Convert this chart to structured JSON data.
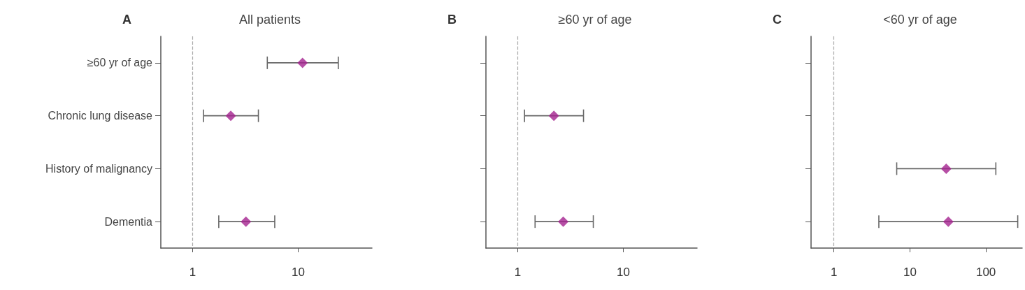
{
  "chart_data": [
    {
      "type": "scatter",
      "title": "All patients",
      "annotations": [
        "A"
      ],
      "orientation": "horizontal",
      "categories": [
        "≥60 yr of age",
        "Chronic lung disease",
        "History of malignancy",
        "Dementia"
      ],
      "series": [
        {
          "color": "#a4228f",
          "values": [
            11,
            2.3,
            null,
            3.2
          ],
          "errors": [
            [
              5.1,
              24
            ],
            [
              1.27,
              4.2
            ],
            null,
            [
              1.77,
              6.0
            ]
          ]
        }
      ],
      "log": "x",
      "xlim": [
        0.5,
        50
      ],
      "xticks": [
        1,
        10
      ],
      "marker": "diamond",
      "grid": false,
      "ref_lines": [
        {
          "axis": "x",
          "value": 1,
          "color": "#aaaaaa",
          "line_style": "dashed"
        }
      ]
    },
    {
      "type": "scatter",
      "title": "≥60 yr of age",
      "annotations": [
        "B"
      ],
      "orientation": "horizontal",
      "categories": [
        null,
        null,
        null,
        null
      ],
      "tick_labels": "x",
      "series": [
        {
          "color": "#a4228f",
          "values": [
            null,
            2.2,
            null,
            2.7
          ],
          "errors": [
            null,
            [
              1.16,
              4.2
            ],
            null,
            [
              1.46,
              5.2
            ]
          ]
        }
      ],
      "log": "x",
      "xlim": [
        0.5,
        50
      ],
      "xticks": [
        1,
        10
      ],
      "marker": "diamond",
      "grid": false,
      "ref_lines": [
        {
          "axis": "x",
          "value": 1,
          "color": "#aaaaaa",
          "line_style": "dashed"
        }
      ]
    },
    {
      "type": "scatter",
      "title": "<60 yr of age",
      "annotations": [
        "C"
      ],
      "orientation": "horizontal",
      "categories": [
        null,
        null,
        null,
        null
      ],
      "tick_labels": "x",
      "series": [
        {
          "color": "#a4228f",
          "values": [
            null,
            null,
            30,
            32
          ],
          "errors": [
            null,
            null,
            [
              6.7,
              135
            ],
            [
              3.9,
              262
            ]
          ]
        }
      ],
      "log": "x",
      "xlim": [
        0.5,
        300
      ],
      "xticks": [
        1,
        10,
        100
      ],
      "marker": "diamond",
      "grid": false,
      "ref_lines": [
        {
          "axis": "x",
          "value": 1,
          "color": "#aaaaaa",
          "line_style": "dashed"
        }
      ]
    }
  ]
}
